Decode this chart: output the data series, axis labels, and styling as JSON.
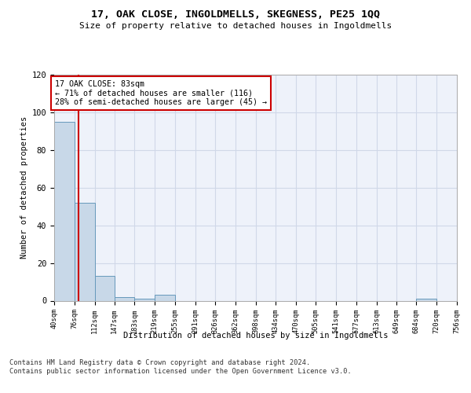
{
  "title": "17, OAK CLOSE, INGOLDMELLS, SKEGNESS, PE25 1QQ",
  "subtitle": "Size of property relative to detached houses in Ingoldmells",
  "xlabel": "Distribution of detached houses by size in Ingoldmells",
  "ylabel": "Number of detached properties",
  "bin_edges": [
    40,
    76,
    112,
    147,
    183,
    219,
    255,
    291,
    326,
    362,
    398,
    434,
    470,
    505,
    541,
    577,
    613,
    649,
    684,
    720,
    756
  ],
  "bar_heights": [
    95,
    52,
    13,
    2,
    1,
    3,
    0,
    0,
    0,
    0,
    0,
    0,
    0,
    0,
    0,
    0,
    0,
    0,
    1,
    0
  ],
  "bar_color": "#c8d8e8",
  "bar_edgecolor": "#6699bb",
  "property_size": 83,
  "vline_color": "#cc0000",
  "annotation_text": "17 OAK CLOSE: 83sqm\n← 71% of detached houses are smaller (116)\n28% of semi-detached houses are larger (45) →",
  "annotation_box_edgecolor": "#cc0000",
  "annotation_box_facecolor": "#ffffff",
  "footer_text": "Contains HM Land Registry data © Crown copyright and database right 2024.\nContains public sector information licensed under the Open Government Licence v3.0.",
  "ylim": [
    0,
    120
  ],
  "background_color": "#eef2fa",
  "grid_color": "#d0d8e8",
  "yticks": [
    0,
    20,
    40,
    60,
    80,
    100,
    120
  ]
}
